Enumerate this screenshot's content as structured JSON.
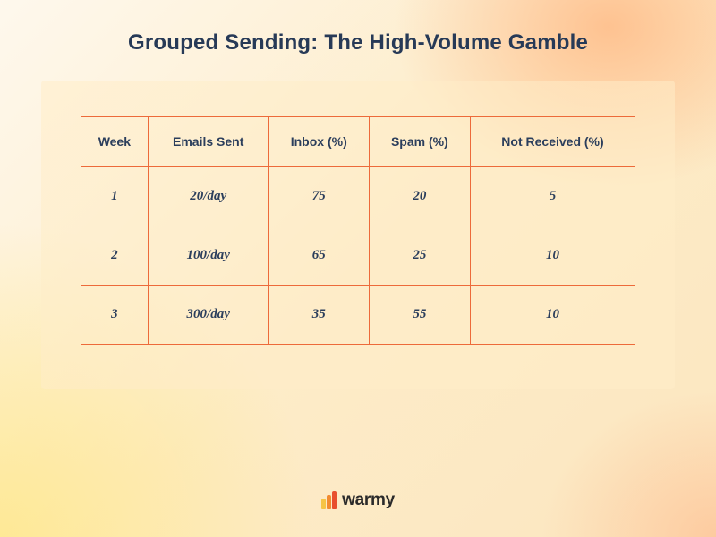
{
  "title": "Grouped Sending: The High-Volume Gamble",
  "table": {
    "type": "table",
    "border_color": "#ed6a3a",
    "header_text_color": "#2b3e5c",
    "cell_text_color": "#2b3e5c",
    "header_fontsize": 14,
    "cell_fontsize": 15,
    "columns": [
      "Week",
      "Emails Sent",
      "Inbox (%)",
      "Spam (%)",
      "Not Received (%)"
    ],
    "rows": [
      [
        "1",
        "20/day",
        "75",
        "20",
        "5"
      ],
      [
        "2",
        "100/day",
        "65",
        "25",
        "10"
      ],
      [
        "3",
        "300/day",
        "35",
        "55",
        "10"
      ]
    ]
  },
  "card": {
    "background_color": "rgba(255,237,200,0.55)"
  },
  "logo": {
    "text": "warmy",
    "bar_colors": [
      "#f6c445",
      "#f28b30",
      "#e84f2e"
    ]
  },
  "background": {
    "base_gradient": [
      "#fef8ed",
      "#fdecc8",
      "#fce6c0"
    ]
  }
}
